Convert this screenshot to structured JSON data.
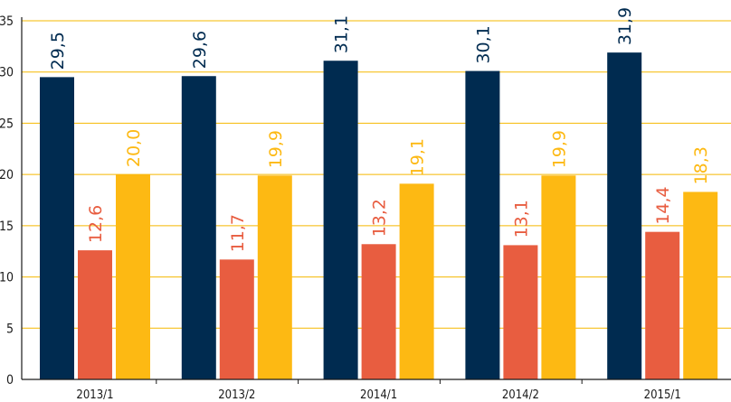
{
  "chart_data": {
    "type": "bar",
    "categories": [
      "2013/1",
      "2013/2",
      "2014/1",
      "2014/2",
      "2015/1"
    ],
    "series": [
      {
        "values": [
          29.5,
          29.6,
          31.1,
          30.1,
          31.9
        ],
        "labels": [
          "29,5",
          "29,6",
          "31,1",
          "30,1",
          "31,9"
        ],
        "color": "#002B50"
      },
      {
        "values": [
          12.6,
          11.7,
          13.2,
          13.1,
          14.4
        ],
        "labels": [
          "12,6",
          "11,7",
          "13,2",
          "13,1",
          "14,4"
        ],
        "color": "#E85D40"
      },
      {
        "values": [
          20.0,
          19.9,
          19.1,
          19.9,
          18.3
        ],
        "labels": [
          "20,0",
          "19,9",
          "19,1",
          "19,9",
          "18,3"
        ],
        "color": "#FDB913"
      }
    ],
    "yticks": [
      "0",
      "5",
      "10",
      "15",
      "20",
      "25",
      "30",
      "35"
    ],
    "ylim": [
      0,
      35
    ],
    "grid": true,
    "title": "",
    "xlabel": "",
    "ylabel": "",
    "colors": {
      "grid": "#F5B800",
      "axis": "#1a1a1a"
    }
  }
}
